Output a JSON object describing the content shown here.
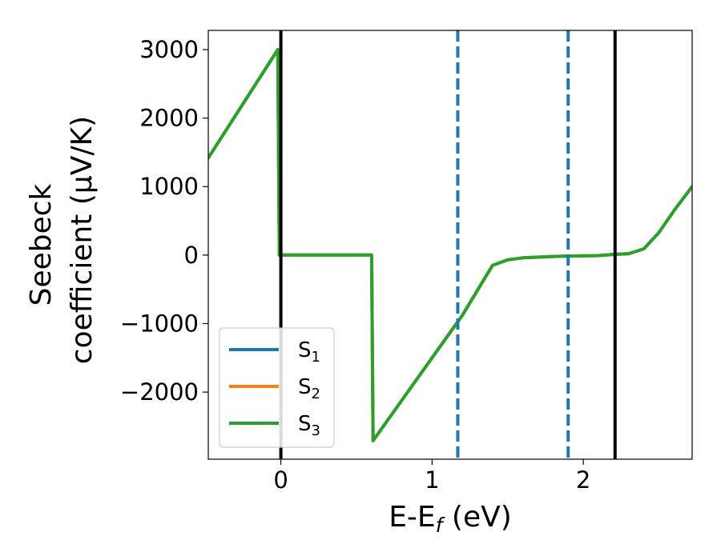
{
  "chart_data": {
    "type": "line",
    "xlabel": "E-E",
    "xlabel_sub": "f",
    "xlabel_unit": " (eV)",
    "ylabel_line1": "Seebeck",
    "ylabel_line2": "coefficient  (μV/K)",
    "xlim": [
      -0.48,
      2.72
    ],
    "ylim": [
      -2980,
      3280
    ],
    "xticks": [
      {
        "value": 0,
        "label": "0"
      },
      {
        "value": 1,
        "label": "1"
      },
      {
        "value": 2,
        "label": "2"
      }
    ],
    "yticks": [
      {
        "value": 3000,
        "label": "3000"
      },
      {
        "value": 2000,
        "label": "2000"
      },
      {
        "value": 1000,
        "label": "1000"
      },
      {
        "value": 0,
        "label": "0"
      },
      {
        "value": -1000,
        "label": "−1000"
      },
      {
        "value": -2000,
        "label": "−2000"
      }
    ],
    "series": [
      {
        "name": "S",
        "sub": "1",
        "color": "#1f77b4",
        "x": [
          -0.48,
          -0.02,
          -0.01,
          0.6,
          0.61,
          1.0,
          1.2,
          1.4,
          1.5,
          1.6,
          1.8,
          1.9,
          2.1,
          2.2,
          2.3,
          2.4,
          2.5,
          2.6,
          2.72
        ],
        "y": [
          1420,
          3000,
          0,
          0,
          -2710,
          -1500,
          -880,
          -150,
          -70,
          -40,
          -20,
          -15,
          -8,
          10,
          20,
          90,
          330,
          650,
          1000
        ]
      },
      {
        "name": "S",
        "sub": "2",
        "color": "#ff7f0e",
        "x": [
          -0.48,
          -0.02,
          -0.01,
          0.6,
          0.61,
          1.0,
          1.2,
          1.4,
          1.5,
          1.6,
          1.8,
          1.9,
          2.1,
          2.2,
          2.3,
          2.4,
          2.5,
          2.6,
          2.72
        ],
        "y": [
          1420,
          3000,
          0,
          0,
          -2710,
          -1500,
          -880,
          -150,
          -70,
          -40,
          -20,
          -15,
          -8,
          10,
          20,
          90,
          330,
          650,
          1000
        ]
      },
      {
        "name": "S",
        "sub": "3",
        "color": "#2ca02c",
        "x": [
          -0.48,
          -0.02,
          -0.01,
          0.6,
          0.61,
          1.0,
          1.2,
          1.4,
          1.5,
          1.6,
          1.8,
          1.9,
          2.1,
          2.2,
          2.3,
          2.4,
          2.5,
          2.6,
          2.72
        ],
        "y": [
          1420,
          3000,
          0,
          0,
          -2710,
          -1500,
          -880,
          -150,
          -70,
          -40,
          -20,
          -15,
          -8,
          10,
          20,
          90,
          330,
          650,
          1000
        ]
      }
    ],
    "vlines": [
      {
        "x": 0.0,
        "style": "solid",
        "color": "#000000"
      },
      {
        "x": 2.21,
        "style": "solid",
        "color": "#000000"
      },
      {
        "x": 1.17,
        "style": "dashed",
        "color": "#1f77b4"
      },
      {
        "x": 1.9,
        "style": "dashed",
        "color": "#1f77b4"
      }
    ],
    "legend": {
      "placement": "lower-left"
    },
    "grid": false
  }
}
